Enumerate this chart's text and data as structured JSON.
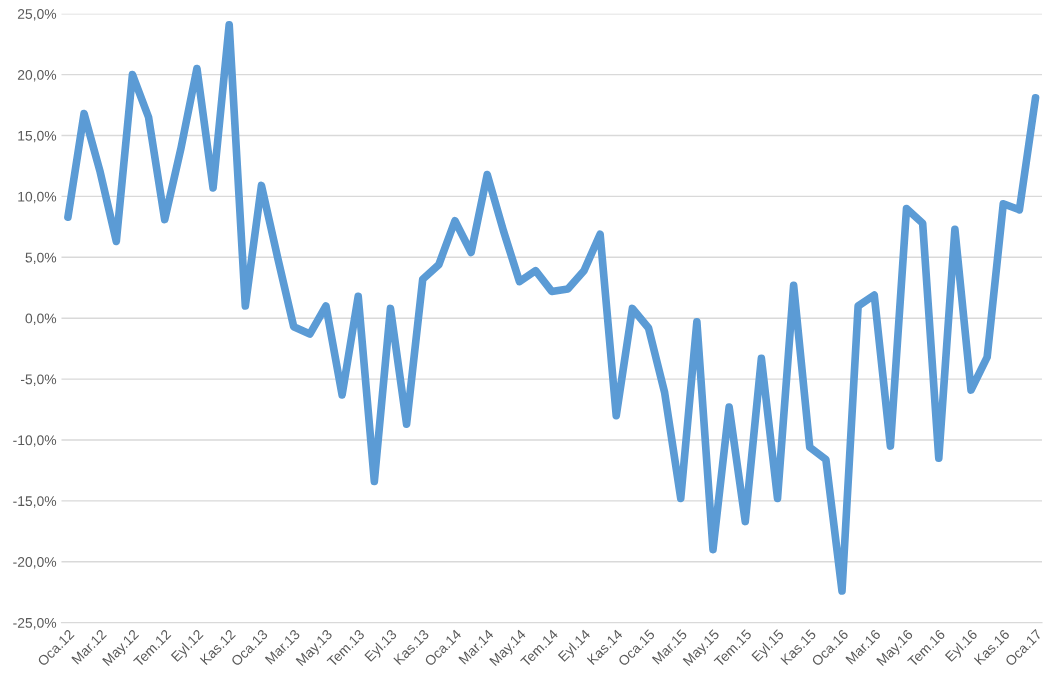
{
  "chart_data": {
    "type": "line",
    "categories": [
      "Oca.12",
      null,
      "Mar.12",
      null,
      "May.12",
      null,
      "Tem.12",
      null,
      "Eyl.12",
      null,
      "Kas.12",
      null,
      "Oca.13",
      null,
      "Mar.13",
      null,
      "May.13",
      null,
      "Tem.13",
      null,
      "Eyl.13",
      null,
      "Kas.13",
      null,
      "Oca.14",
      null,
      "Mar.14",
      null,
      "May.14",
      null,
      "Tem.14",
      null,
      "Eyl.14",
      null,
      "Kas.14",
      null,
      "Oca.15",
      null,
      "Mar.15",
      null,
      "May.15",
      null,
      "Tem.15",
      null,
      "Eyl.15",
      null,
      "Kas.15",
      null,
      "Oca.16",
      null,
      "Mar.16",
      null,
      "May.16",
      null,
      "Tem.16",
      null,
      "Eyl.16",
      null,
      "Kas.16",
      null,
      "Oca.17"
    ],
    "series": [
      {
        "color": "#5b9bd5",
        "values": [
          8.3,
          16.8,
          12.0,
          6.3,
          20.0,
          16.5,
          8.1,
          13.9,
          20.5,
          10.7,
          24.1,
          1.0,
          10.9,
          5.0,
          -0.7,
          -1.3,
          1.0,
          -6.3,
          1.8,
          -13.4,
          0.8,
          -8.7,
          3.2,
          4.4,
          8.0,
          5.4,
          11.8,
          7.2,
          3.0,
          3.9,
          2.2,
          2.4,
          3.9,
          6.9,
          -8.0,
          0.8,
          -0.8,
          -6.1,
          -14.8,
          -0.3,
          -19.0,
          -7.3,
          -16.7,
          -3.3,
          -14.8,
          2.7,
          -10.6,
          -11.6,
          -22.4,
          1.0,
          1.9,
          -10.5,
          9.0,
          7.8,
          -11.5,
          7.3,
          -5.9,
          -3.2,
          9.4,
          8.9,
          18.1
        ]
      }
    ],
    "ylim": [
      -25,
      25
    ],
    "yticks": [
      {
        "value": -25,
        "label": "-25,0%"
      },
      {
        "value": -20,
        "label": "-20,0%"
      },
      {
        "value": -15,
        "label": "-15,0%"
      },
      {
        "value": -10,
        "label": "-10,0%"
      },
      {
        "value": -5,
        "label": "-5,0%"
      },
      {
        "value": 0,
        "label": "0,0%"
      },
      {
        "value": 5,
        "label": "5,0%"
      },
      {
        "value": 10,
        "label": "10,0%"
      },
      {
        "value": 15,
        "label": "15,0%"
      },
      {
        "value": 20,
        "label": "20,0%"
      },
      {
        "value": 25,
        "label": "25,0%"
      }
    ],
    "grid": "y",
    "line_style": "solid",
    "marker": "none"
  }
}
